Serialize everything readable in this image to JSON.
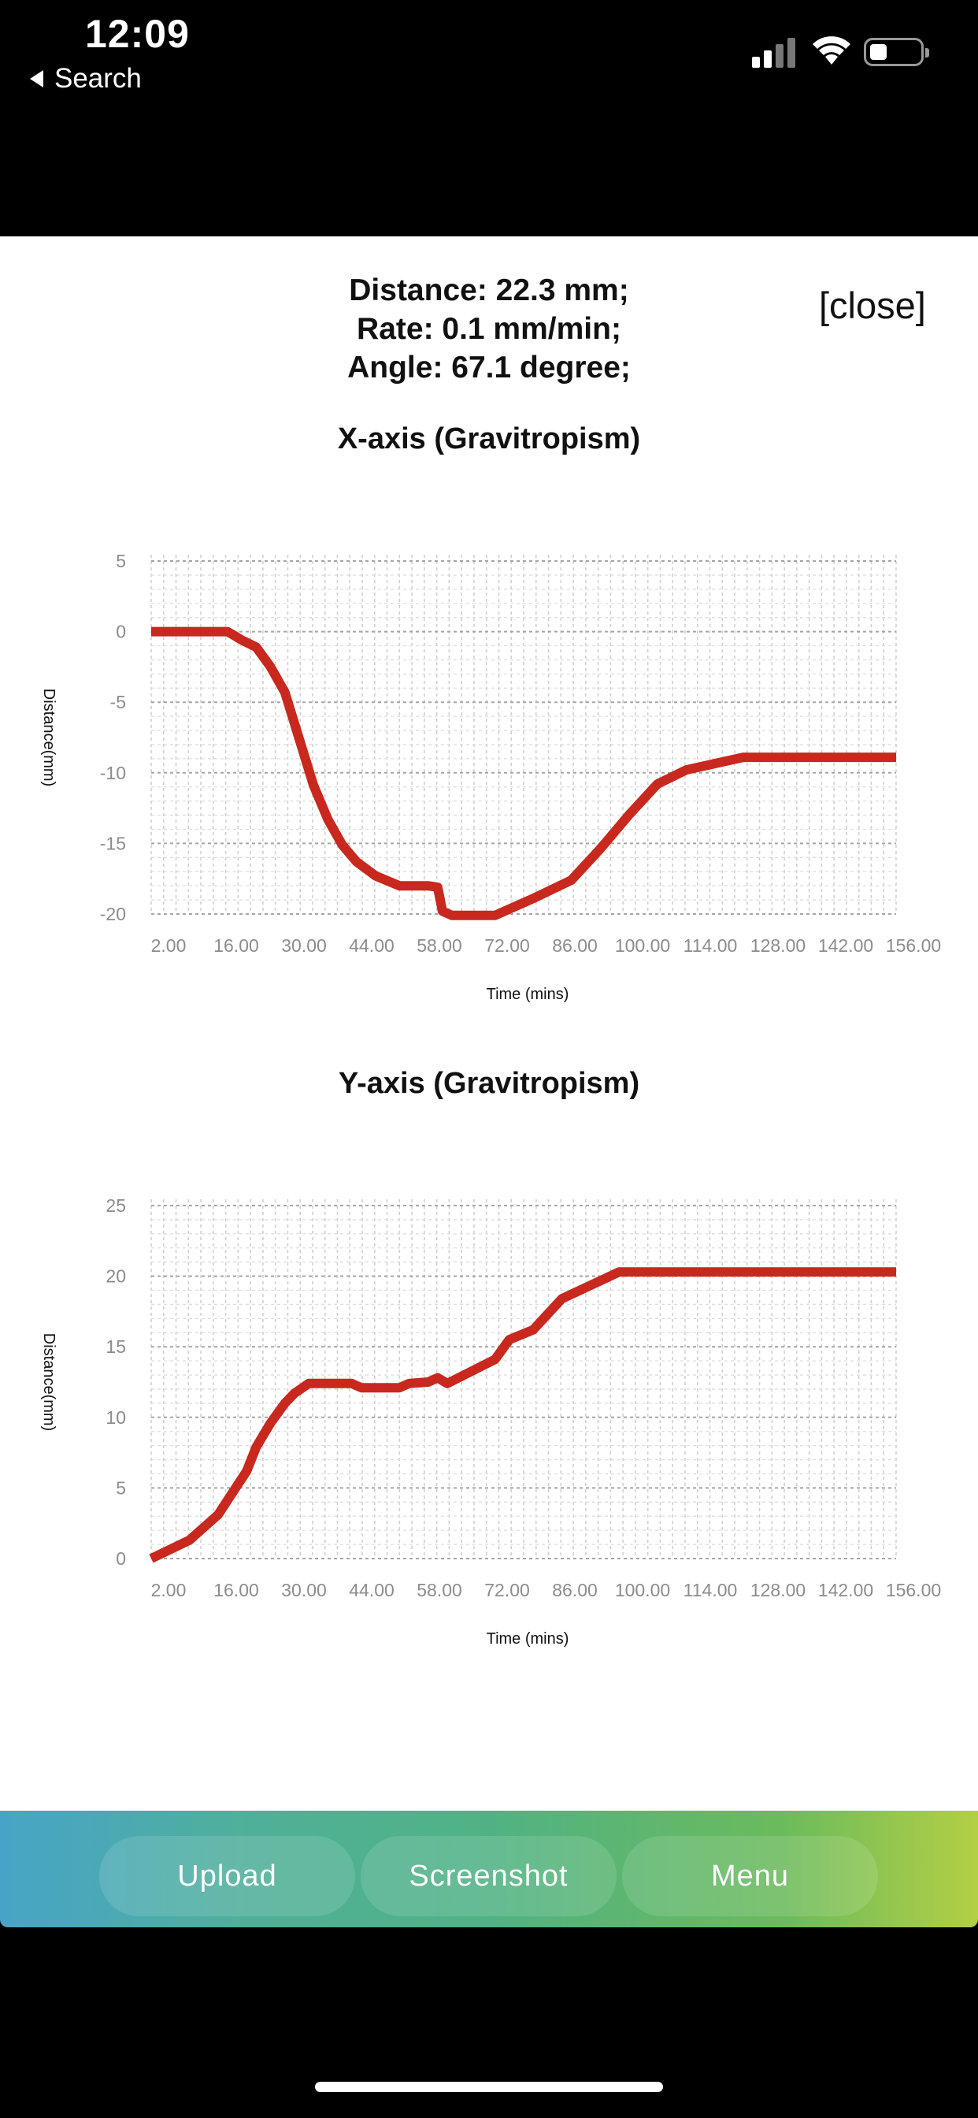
{
  "status_bar": {
    "time": "12:09",
    "back_label": "Search"
  },
  "header": {
    "distance": "Distance: 22.3 mm;",
    "rate": "Rate: 0.1 mm/min;",
    "angle": "Angle: 67.1 degree;",
    "close_label": "[close]"
  },
  "charts": {
    "line_color": "#c8281e",
    "x_title": "X-axis (Gravitropism)",
    "y_title": "Y-axis (Gravitropism)",
    "xlabel": "Time (mins)",
    "ylabel": "Distance(mm)"
  },
  "chart_data": [
    {
      "type": "line",
      "title": "X-axis (Gravitropism)",
      "xlabel": "Time (mins)",
      "ylabel": "Distance(mm)",
      "xlim": [
        0,
        156
      ],
      "ylim": [
        -20,
        5
      ],
      "xticks": [
        "2.00",
        "16.00",
        "30.00",
        "44.00",
        "58.00",
        "72.00",
        "86.00",
        "100.00",
        "114.00",
        "128.00",
        "142.00",
        "156.00"
      ],
      "yticks": [
        "5",
        "0",
        "-5",
        "-10",
        "-15",
        "-20"
      ],
      "grid": true,
      "series": [
        {
          "x": [
            0,
            16,
            19,
            22,
            25,
            28,
            31,
            34,
            37,
            40,
            43,
            47,
            52,
            58,
            60,
            61,
            63,
            72,
            76,
            80,
            88,
            94,
            100,
            106,
            112,
            124,
            156
          ],
          "y": [
            0,
            0,
            -0.6,
            -1.1,
            -2.5,
            -4.3,
            -7.6,
            -10.9,
            -13.3,
            -15.1,
            -16.3,
            -17.3,
            -18,
            -18,
            -18.1,
            -19.8,
            -20.1,
            -20.1,
            -19.5,
            -18.9,
            -17.6,
            -15.4,
            -13,
            -10.8,
            -9.8,
            -8.9,
            -8.9
          ]
        }
      ]
    },
    {
      "type": "line",
      "title": "Y-axis (Gravitropism)",
      "xlabel": "Time (mins)",
      "ylabel": "Distance(mm)",
      "xlim": [
        0,
        156
      ],
      "ylim": [
        0,
        25
      ],
      "xticks": [
        "2.00",
        "16.00",
        "30.00",
        "44.00",
        "58.00",
        "72.00",
        "86.00",
        "100.00",
        "114.00",
        "128.00",
        "142.00",
        "156.00"
      ],
      "yticks": [
        "25",
        "20",
        "15",
        "10",
        "5",
        "0"
      ],
      "grid": true,
      "series": [
        {
          "x": [
            0,
            8,
            14,
            20,
            22,
            25,
            28,
            30,
            33,
            42,
            44,
            52,
            54,
            58,
            60,
            62,
            72,
            75,
            80,
            86,
            98,
            156
          ],
          "y": [
            0,
            1.3,
            3.1,
            6.2,
            7.9,
            9.6,
            11,
            11.7,
            12.4,
            12.4,
            12.1,
            12.1,
            12.4,
            12.5,
            12.8,
            12.4,
            14.1,
            15.5,
            16.2,
            18.4,
            20.3,
            20.3
          ]
        }
      ]
    }
  ],
  "toolbar": {
    "upload": "Upload",
    "screenshot": "Screenshot",
    "menu": "Menu"
  }
}
